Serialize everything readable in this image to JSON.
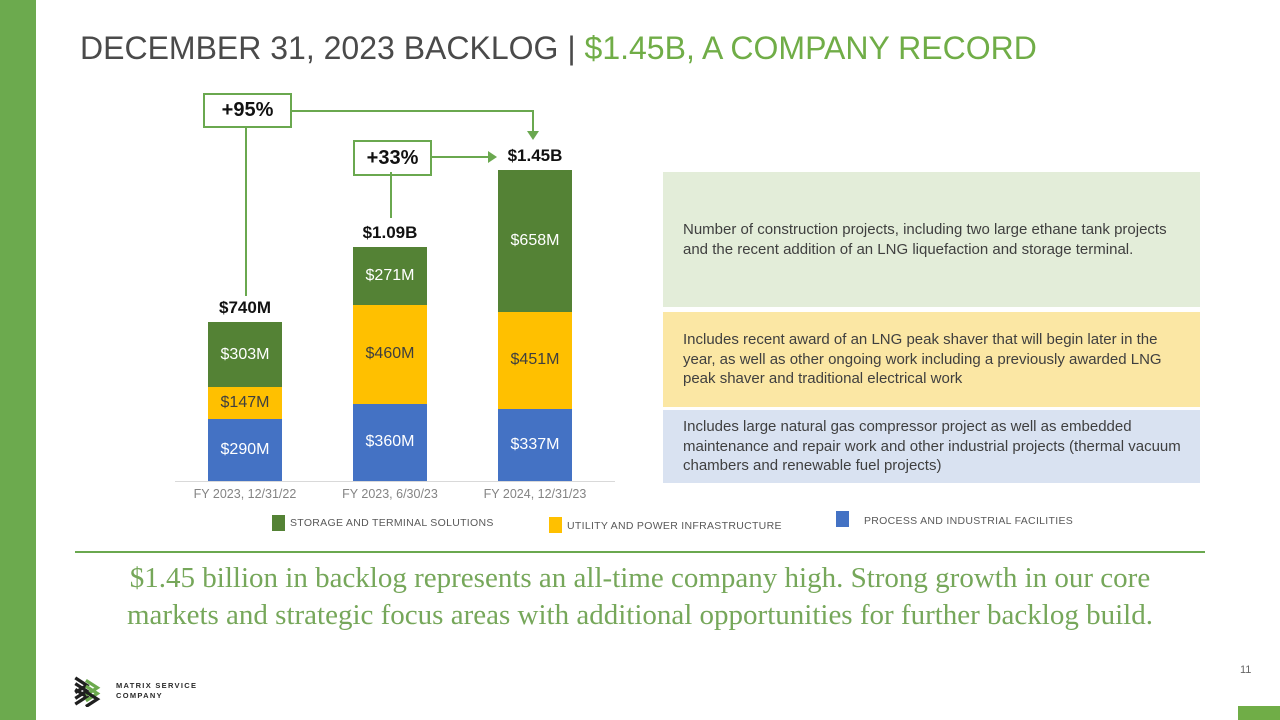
{
  "header": {
    "title_prefix": "DECEMBER 31, 2023 BACKLOG | ",
    "title_highlight": "$1.45B, A COMPANY RECORD"
  },
  "chart_data": {
    "type": "bar",
    "stacked": true,
    "unit": "USD millions",
    "categories": [
      "FY 2023, 12/31/22",
      "FY 2023, 6/30/23",
      "FY 2024, 12/31/23"
    ],
    "series": [
      {
        "name": "STORAGE AND TERMINAL SOLUTIONS",
        "color": "#548235",
        "label_color": "#ffffff",
        "values": [
          303,
          271,
          658
        ],
        "labels": [
          "$303M",
          "$271M",
          "$658M"
        ]
      },
      {
        "name": "UTILITY AND POWER INFRASTRUCTURE",
        "color": "#FFC000",
        "label_color": "#3f3f3f",
        "values": [
          147,
          460,
          451
        ],
        "labels": [
          "$147M",
          "$460M",
          "$451M"
        ]
      },
      {
        "name": "PROCESS AND INDUSTRIAL FACILITIES",
        "color": "#4472C4",
        "label_color": "#ffffff",
        "values": [
          290,
          360,
          337
        ],
        "labels": [
          "$290M",
          "$360M",
          "$337M"
        ]
      }
    ],
    "totals": [
      {
        "value": 740,
        "label": "$740M"
      },
      {
        "value": 1091,
        "label": "$1.09B"
      },
      {
        "value": 1446,
        "label": "$1.45B"
      }
    ],
    "annotations": [
      {
        "label": "+95%",
        "from": "FY 2023, 12/31/22",
        "to": "FY 2024, 12/31/23"
      },
      {
        "label": "+33%",
        "from": "FY 2023, 6/30/23",
        "to": "FY 2024, 12/31/23"
      }
    ],
    "legend_position": "bottom",
    "grid": false
  },
  "notes": [
    {
      "bg": "#e3edd9",
      "text": "Number of construction projects, including two large ethane tank projects  and the recent addition of an LNG liquefaction and storage terminal."
    },
    {
      "bg": "#fbe7a4",
      "text": "Includes recent award of an LNG peak shaver that will begin later in the year, as well as other ongoing work including a previously awarded LNG peak shaver and traditional electrical work"
    },
    {
      "bg": "#d9e2f1",
      "text": "Includes large natural gas compressor project as well as embedded maintenance and repair work and other industrial projects (thermal vacuum chambers and renewable fuel projects)"
    }
  ],
  "key_message_lines": [
    "$1.45 billion in backlog represents an all-time company high. Strong growth in our core",
    "markets and strategic focus areas with additional opportunities for further backlog build."
  ],
  "footer": {
    "company_line1": "MATRIX SERVICE",
    "company_line2": "COMPANY",
    "page_number": "11"
  }
}
